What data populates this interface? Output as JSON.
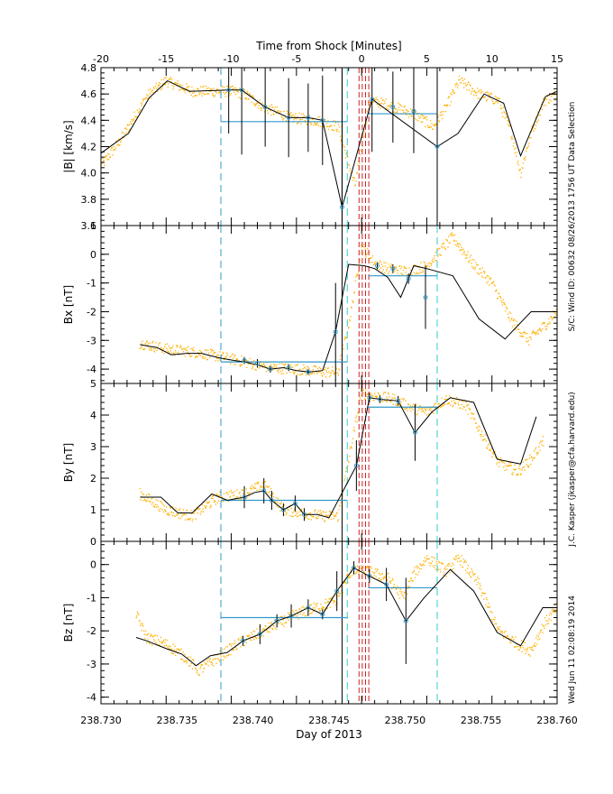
{
  "colors": {
    "background": "#ffffff",
    "axis": "#000000",
    "raw_points": "#ffb000",
    "model_line": "#000000",
    "average_line": "#3399cc",
    "window_dash_left": "#3399cc",
    "window_dash_right": "#33cccc",
    "shock_dash": "#cc2222"
  },
  "chart_data": {
    "type": "line",
    "title": "",
    "top_axis": {
      "label": "Time from Shock [Minutes]",
      "range": [
        -20,
        15
      ],
      "ticks": [
        "-20",
        "-15",
        "-10",
        "-5",
        "0",
        "5",
        "10",
        "15"
      ]
    },
    "bottom_axis": {
      "label": "Day of 2013",
      "range": [
        238.73,
        238.76
      ],
      "ticks": [
        "238.730",
        "238.735",
        "238.740",
        "238.745",
        "238.750",
        "238.755",
        "238.760"
      ]
    },
    "side_labels": [
      "Wed Jun 11 02:08:19 2014",
      "J.C. Kasper (jkasper@cfa.harvard.edu)",
      "S/C: Wind ID: 00632 08/26/2013  1756 UT Data Selection"
    ],
    "panels": [
      {
        "id": "bmag",
        "ylabel": "|B| [km/s]",
        "ylim": [
          3.6,
          4.8
        ],
        "ytick_labels": [
          "3.6",
          "3.8",
          "4.0",
          "4.2",
          "4.4",
          "4.6",
          "4.8"
        ],
        "ticks": [
          3.6,
          3.8,
          4.0,
          4.2,
          4.4,
          4.6,
          4.8
        ],
        "model_x": [
          -20,
          -17.9,
          -16.3,
          -14.9,
          -13.2,
          -10.2,
          -9.2,
          -7.4,
          -5.6,
          -4.1,
          -3.0,
          -1.5,
          0.8,
          5.8,
          7.4,
          9.4,
          10.9,
          12.2,
          14.1,
          15
        ],
        "model_y": [
          4.15,
          4.3,
          4.57,
          4.7,
          4.62,
          4.63,
          4.63,
          4.5,
          4.42,
          4.42,
          4.4,
          3.74,
          4.56,
          4.2,
          4.3,
          4.6,
          4.53,
          4.13,
          4.58,
          4.62
        ],
        "measurements": [
          {
            "x": -10.2,
            "y": 4.63,
            "err": 0.33
          },
          {
            "x": -9.2,
            "y": 4.63,
            "err": 0.49
          },
          {
            "x": -7.4,
            "y": 4.5,
            "err": 0.3
          },
          {
            "x": -5.6,
            "y": 4.42,
            "err": 0.3
          },
          {
            "x": -4.1,
            "y": 4.42,
            "err": 0.26
          },
          {
            "x": -3.0,
            "y": 4.4,
            "err": 0.34
          },
          {
            "x": -1.5,
            "y": 3.74,
            "err": 1.06
          },
          {
            "x": 0.8,
            "y": 4.56,
            "err": 0.4
          },
          {
            "x": 2.4,
            "y": 4.5,
            "err": 0.27
          },
          {
            "x": 4.0,
            "y": 4.47,
            "err": 0.32
          },
          {
            "x": 5.8,
            "y": 4.2,
            "err": 0.6
          }
        ],
        "upstream_avg": 4.39,
        "downstream_avg": 4.45,
        "raw_trend": [
          [
            -20,
            4.05
          ],
          [
            -18.5,
            4.25
          ],
          [
            -16.5,
            4.58
          ],
          [
            -15,
            4.7
          ],
          [
            -13,
            4.62
          ],
          [
            -10,
            4.62
          ],
          [
            -9,
            4.6
          ],
          [
            -7.5,
            4.5
          ],
          [
            -5.5,
            4.42
          ],
          [
            -3.5,
            4.4
          ],
          [
            -1.8,
            4.35
          ],
          [
            -0.5,
            3.9
          ],
          [
            0.6,
            4.55
          ],
          [
            2,
            4.52
          ],
          [
            4,
            4.45
          ],
          [
            5.5,
            4.35
          ],
          [
            6.5,
            4.5
          ],
          [
            7.5,
            4.7
          ],
          [
            9,
            4.6
          ],
          [
            10.5,
            4.55
          ],
          [
            11.5,
            4.3
          ],
          [
            12.2,
            4.0
          ],
          [
            13,
            4.3
          ],
          [
            14,
            4.55
          ],
          [
            15,
            4.6
          ]
        ]
      },
      {
        "id": "bx",
        "ylabel": "Bx [nT]",
        "ylim": [
          -4.5,
          1.0
        ],
        "ytick_labels": [
          "-4",
          "-3",
          "-2",
          "-1",
          "0",
          "1"
        ],
        "ticks": [
          -4,
          -3,
          -2,
          -1,
          0,
          1
        ],
        "model_x": [
          -17.0,
          -15.7,
          -14.6,
          -13.4,
          -12.3,
          -11.0,
          -9.8,
          -9.0,
          -8.0,
          -7.0,
          -6.0,
          -5.0,
          -4.0,
          -3.0,
          -2.0,
          -1.0,
          0.2,
          1.0,
          2.0,
          3.0,
          4.0,
          5.0,
          7.0,
          9.0,
          11.0,
          13.0,
          15.0
        ],
        "model_y": [
          -3.15,
          -3.25,
          -3.5,
          -3.45,
          -3.45,
          -3.6,
          -3.7,
          -3.75,
          -3.85,
          -4.0,
          -3.95,
          -4.05,
          -4.1,
          -4.05,
          -2.7,
          -0.35,
          -0.4,
          -0.5,
          -0.8,
          -1.5,
          -0.4,
          -0.5,
          -0.75,
          -2.25,
          -2.95,
          -2.0,
          -2.0
        ],
        "measurements": [
          {
            "x": -9.0,
            "y": -3.7,
            "err": 0.12
          },
          {
            "x": -8.0,
            "y": -3.8,
            "err": 0.15
          },
          {
            "x": -7.0,
            "y": -4.0,
            "err": 0.12
          },
          {
            "x": -5.6,
            "y": -3.95,
            "err": 0.12
          },
          {
            "x": -4.1,
            "y": -4.1,
            "err": 0.1
          },
          {
            "x": -2.0,
            "y": -2.7,
            "err": 1.7
          },
          {
            "x": 1.2,
            "y": -0.4,
            "err": 0.12
          },
          {
            "x": 2.4,
            "y": -0.5,
            "err": 0.15
          },
          {
            "x": 3.6,
            "y": -0.85,
            "err": 0.18
          },
          {
            "x": 4.9,
            "y": -1.5,
            "err": 1.1
          }
        ],
        "upstream_avg": -3.75,
        "downstream_avg": -0.75,
        "raw_trend": [
          [
            -17,
            -3.1
          ],
          [
            -15,
            -3.3
          ],
          [
            -13,
            -3.4
          ],
          [
            -11,
            -3.55
          ],
          [
            -9,
            -3.75
          ],
          [
            -7,
            -3.95
          ],
          [
            -5,
            -4.0
          ],
          [
            -3,
            -4.1
          ],
          [
            -1.8,
            -4.1
          ],
          [
            -0.8,
            -2.0
          ],
          [
            0,
            0.3
          ],
          [
            1,
            -0.3
          ],
          [
            2,
            -0.5
          ],
          [
            3.5,
            -0.6
          ],
          [
            5,
            -0.4
          ],
          [
            6,
            0.1
          ],
          [
            7,
            0.6
          ],
          [
            8.5,
            -0.3
          ],
          [
            10,
            -1.0
          ],
          [
            11.5,
            -2.3
          ],
          [
            12.8,
            -3.0
          ],
          [
            14,
            -2.5
          ],
          [
            15,
            -2.0
          ]
        ]
      },
      {
        "id": "by",
        "ylabel": "By [nT]",
        "ylim": [
          0,
          5
        ],
        "ytick_labels": [
          "0",
          "1",
          "2",
          "3",
          "4",
          "5"
        ],
        "ticks": [
          0,
          1,
          2,
          3,
          4,
          5
        ],
        "model_x": [
          -17.0,
          -15.4,
          -14.1,
          -13.0,
          -11.5,
          -10.3,
          -9.0,
          -8.2,
          -7.5,
          -6.9,
          -6.0,
          -5.1,
          -4.4,
          -3.4,
          -2.5,
          -0.4,
          0.6,
          1.4,
          2.8,
          4.1,
          5.4,
          6.8,
          8.6,
          10.4,
          12.2,
          13.4
        ],
        "model_y": [
          1.4,
          1.4,
          0.9,
          0.9,
          1.5,
          1.3,
          1.4,
          1.55,
          1.6,
          1.3,
          1.0,
          1.2,
          0.85,
          0.85,
          0.75,
          2.4,
          4.55,
          4.5,
          4.45,
          3.45,
          4.1,
          4.55,
          4.4,
          2.6,
          2.45,
          3.95
        ],
        "measurements": [
          {
            "x": -9.0,
            "y": 1.4,
            "err": 0.35
          },
          {
            "x": -7.5,
            "y": 1.6,
            "err": 0.4
          },
          {
            "x": -6.9,
            "y": 1.3,
            "err": 0.3
          },
          {
            "x": -6.0,
            "y": 1.0,
            "err": 0.2
          },
          {
            "x": -5.1,
            "y": 1.2,
            "err": 0.25
          },
          {
            "x": -4.4,
            "y": 0.85,
            "err": 0.2
          },
          {
            "x": -0.4,
            "y": 2.4,
            "err": 0.8
          },
          {
            "x": 0.6,
            "y": 4.55,
            "err": 0.15
          },
          {
            "x": 1.4,
            "y": 4.5,
            "err": 0.12
          },
          {
            "x": 2.8,
            "y": 4.45,
            "err": 0.15
          },
          {
            "x": 4.1,
            "y": 3.45,
            "err": 0.9
          }
        ],
        "upstream_avg": 1.3,
        "downstream_avg": 4.25,
        "raw_trend": [
          [
            -17,
            1.5
          ],
          [
            -15,
            1.0
          ],
          [
            -13,
            0.8
          ],
          [
            -11,
            1.4
          ],
          [
            -9,
            1.5
          ],
          [
            -7.5,
            1.8
          ],
          [
            -6,
            1.0
          ],
          [
            -4.5,
            0.9
          ],
          [
            -3,
            0.8
          ],
          [
            -1.8,
            0.8
          ],
          [
            -0.8,
            3.0
          ],
          [
            0,
            4.7
          ],
          [
            1,
            4.6
          ],
          [
            2.5,
            4.5
          ],
          [
            4,
            4.2
          ],
          [
            5,
            4.1
          ],
          [
            6.5,
            4.5
          ],
          [
            8,
            4.3
          ],
          [
            9.5,
            3.2
          ],
          [
            10.5,
            2.5
          ],
          [
            12,
            2.2
          ],
          [
            13,
            2.6
          ],
          [
            14,
            3.2
          ]
        ]
      },
      {
        "id": "bz",
        "ylabel": "Bz [nT]",
        "ylim": [
          -4.2,
          0.7
        ],
        "ytick_labels": [
          "-4",
          "-3",
          "-2",
          "-1",
          "0"
        ],
        "ticks": [
          -4,
          -3,
          -2,
          -1,
          0
        ],
        "model_x": [
          -17.3,
          -16.5,
          -14.9,
          -13.8,
          -12.7,
          -11.6,
          -10.3,
          -9.1,
          -7.8,
          -6.5,
          -5.4,
          -4.1,
          -3.0,
          -1.9,
          -0.6,
          0.6,
          1.9,
          3.4,
          4.8,
          6.8,
          8.6,
          10.4,
          12.2,
          13.9,
          15.0
        ],
        "model_y": [
          -2.2,
          -2.3,
          -2.55,
          -2.7,
          -3.05,
          -2.75,
          -2.65,
          -2.3,
          -2.1,
          -1.7,
          -1.55,
          -1.3,
          -1.5,
          -0.8,
          -0.1,
          -0.35,
          -0.6,
          -1.7,
          -1.0,
          -0.15,
          -0.8,
          -2.05,
          -2.45,
          -1.3,
          -1.3
        ],
        "measurements": [
          {
            "x": -9.1,
            "y": -2.3,
            "err": 0.15
          },
          {
            "x": -7.8,
            "y": -2.1,
            "err": 0.3
          },
          {
            "x": -6.5,
            "y": -1.7,
            "err": 0.2
          },
          {
            "x": -5.4,
            "y": -1.55,
            "err": 0.35
          },
          {
            "x": -4.1,
            "y": -1.3,
            "err": 0.25
          },
          {
            "x": -3.0,
            "y": -1.5,
            "err": 0.15
          },
          {
            "x": -1.9,
            "y": -0.8,
            "err": 0.6
          },
          {
            "x": -0.6,
            "y": -0.1,
            "err": 0.2
          },
          {
            "x": 0.6,
            "y": -0.35,
            "err": 0.2
          },
          {
            "x": 1.9,
            "y": -0.6,
            "err": 0.5
          },
          {
            "x": 3.4,
            "y": -1.7,
            "err": 1.3
          }
        ],
        "upstream_avg": -1.6,
        "downstream_avg": -0.7,
        "raw_trend": [
          [
            -17.3,
            -1.5
          ],
          [
            -16.5,
            -2.2
          ],
          [
            -15,
            -2.4
          ],
          [
            -13.5,
            -2.8
          ],
          [
            -12.5,
            -3.2
          ],
          [
            -11,
            -2.8
          ],
          [
            -9.5,
            -2.4
          ],
          [
            -8,
            -2.1
          ],
          [
            -6.5,
            -1.8
          ],
          [
            -5,
            -1.5
          ],
          [
            -3.5,
            -1.3
          ],
          [
            -2,
            -1.1
          ],
          [
            -0.8,
            -0.2
          ],
          [
            0.5,
            -0.2
          ],
          [
            2,
            -0.4
          ],
          [
            3.2,
            -1.0
          ],
          [
            4,
            -0.3
          ],
          [
            5,
            0.2
          ],
          [
            6.5,
            -0.2
          ],
          [
            7.5,
            0.2
          ],
          [
            9,
            -0.6
          ],
          [
            10.5,
            -2.0
          ],
          [
            12,
            -2.4
          ],
          [
            13,
            -2.6
          ],
          [
            14,
            -1.8
          ],
          [
            15,
            -1.3
          ]
        ]
      }
    ]
  }
}
